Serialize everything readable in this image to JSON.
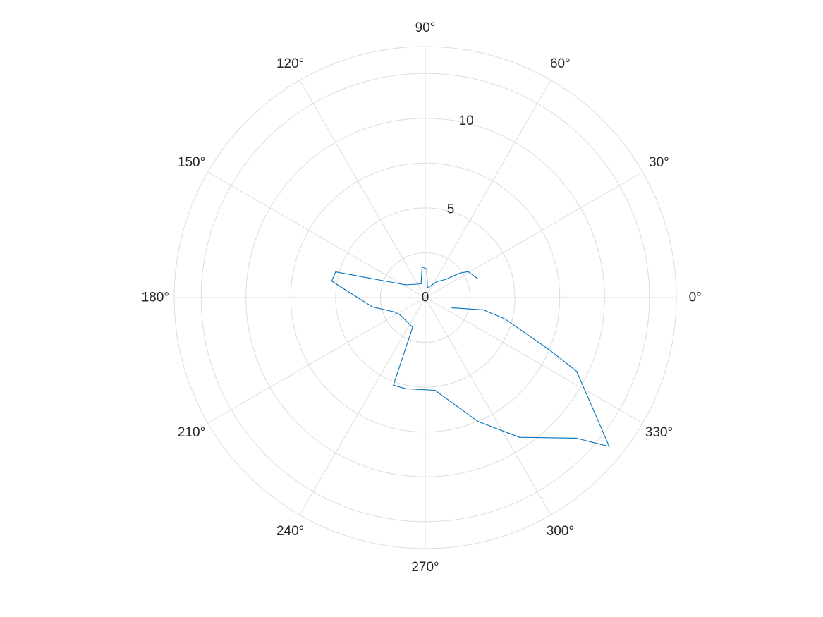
{
  "chart_data": {
    "type": "line",
    "coordinate_system": "polar",
    "theta_unit": "degrees",
    "theta_ticks": [
      0,
      30,
      60,
      90,
      120,
      150,
      180,
      210,
      240,
      270,
      300,
      330
    ],
    "theta_tick_labels": [
      "0°",
      "30°",
      "60°",
      "90°",
      "120°",
      "150°",
      "180°",
      "210°",
      "240°",
      "270°",
      "300°",
      "330°"
    ],
    "r_ticks": [
      0,
      5,
      10
    ],
    "r_tick_labels": [
      "0",
      "5",
      "10"
    ],
    "rlim": [
      0,
      14
    ],
    "grid": true,
    "series": [
      {
        "color": "#0072bd",
        "theta": [
          20,
          31,
          35,
          42,
          54,
          77,
          87,
          96,
          107,
          147,
          164,
          170,
          190,
          205,
          215,
          247,
          250,
          258,
          276,
          293,
          304,
          317,
          321,
          334,
          337,
          345,
          348,
          339
        ],
        "r": [
          3.1,
          2.8,
          2.4,
          1.5,
          1.1,
          0.55,
          1.6,
          1.7,
          0.8,
          1.3,
          5.2,
          5.3,
          3.0,
          1.9,
          1.7,
          1.8,
          5.2,
          5.2,
          5.2,
          7.5,
          9.4,
          11.5,
          13.2,
          9.4,
          7.6,
          4.6,
          3.3,
          1.6
        ]
      }
    ]
  }
}
